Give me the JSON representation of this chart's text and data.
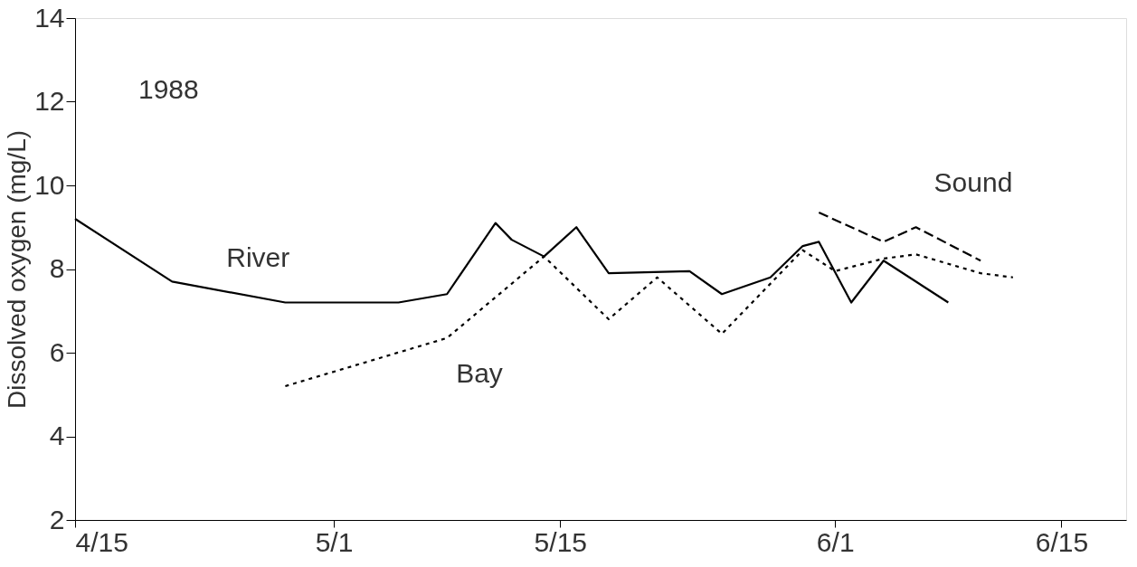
{
  "chart_data": {
    "type": "line",
    "ylabel": "Dissolved oxygen (mg/L)",
    "annotations": [
      "1988"
    ],
    "xlim": [
      "1988-04-15",
      "1988-06-19"
    ],
    "xticks": [
      {
        "value": "1988-04-15",
        "label": "4/15"
      },
      {
        "value": "1988-05-01",
        "label": "5/1"
      },
      {
        "value": "1988-05-15",
        "label": "5/15"
      },
      {
        "value": "1988-06-01",
        "label": "6/1"
      },
      {
        "value": "1988-06-15",
        "label": "6/15"
      }
    ],
    "ylim": [
      2,
      14
    ],
    "yticks": [
      2,
      4,
      6,
      8,
      10,
      12,
      14
    ],
    "grid": false,
    "marker": "none",
    "series": [
      {
        "name": "River",
        "color": "#000000",
        "line_style": "solid",
        "x": [
          "1988-04-15",
          "1988-04-21",
          "1988-04-28",
          "1988-05-05",
          "1988-05-08",
          "1988-05-11",
          "1988-05-12",
          "1988-05-14",
          "1988-05-16",
          "1988-05-18",
          "1988-05-23",
          "1988-05-25",
          "1988-05-28",
          "1988-05-30",
          "1988-05-31",
          "1988-06-02",
          "1988-06-04",
          "1988-06-08"
        ],
        "values": [
          9.2,
          7.7,
          7.2,
          7.2,
          7.4,
          9.1,
          8.7,
          8.3,
          9.0,
          7.9,
          7.95,
          7.4,
          7.8,
          8.55,
          8.65,
          7.2,
          8.2,
          7.2
        ]
      },
      {
        "name": "Bay",
        "color": "#000000",
        "line_style": "dotted",
        "x": [
          "1988-04-28",
          "1988-05-08",
          "1988-05-14",
          "1988-05-18",
          "1988-05-21",
          "1988-05-25",
          "1988-05-30",
          "1988-06-01",
          "1988-06-04",
          "1988-06-06",
          "1988-06-10",
          "1988-06-12"
        ],
        "values": [
          5.2,
          6.35,
          8.3,
          6.8,
          7.8,
          6.45,
          8.45,
          7.95,
          8.25,
          8.35,
          7.9,
          7.8
        ]
      },
      {
        "name": "Sound",
        "color": "#000000",
        "line_style": "dashed",
        "x": [
          "1988-05-31",
          "1988-06-04",
          "1988-06-06",
          "1988-06-10"
        ],
        "values": [
          9.35,
          8.65,
          9.0,
          8.2
        ]
      }
    ]
  }
}
